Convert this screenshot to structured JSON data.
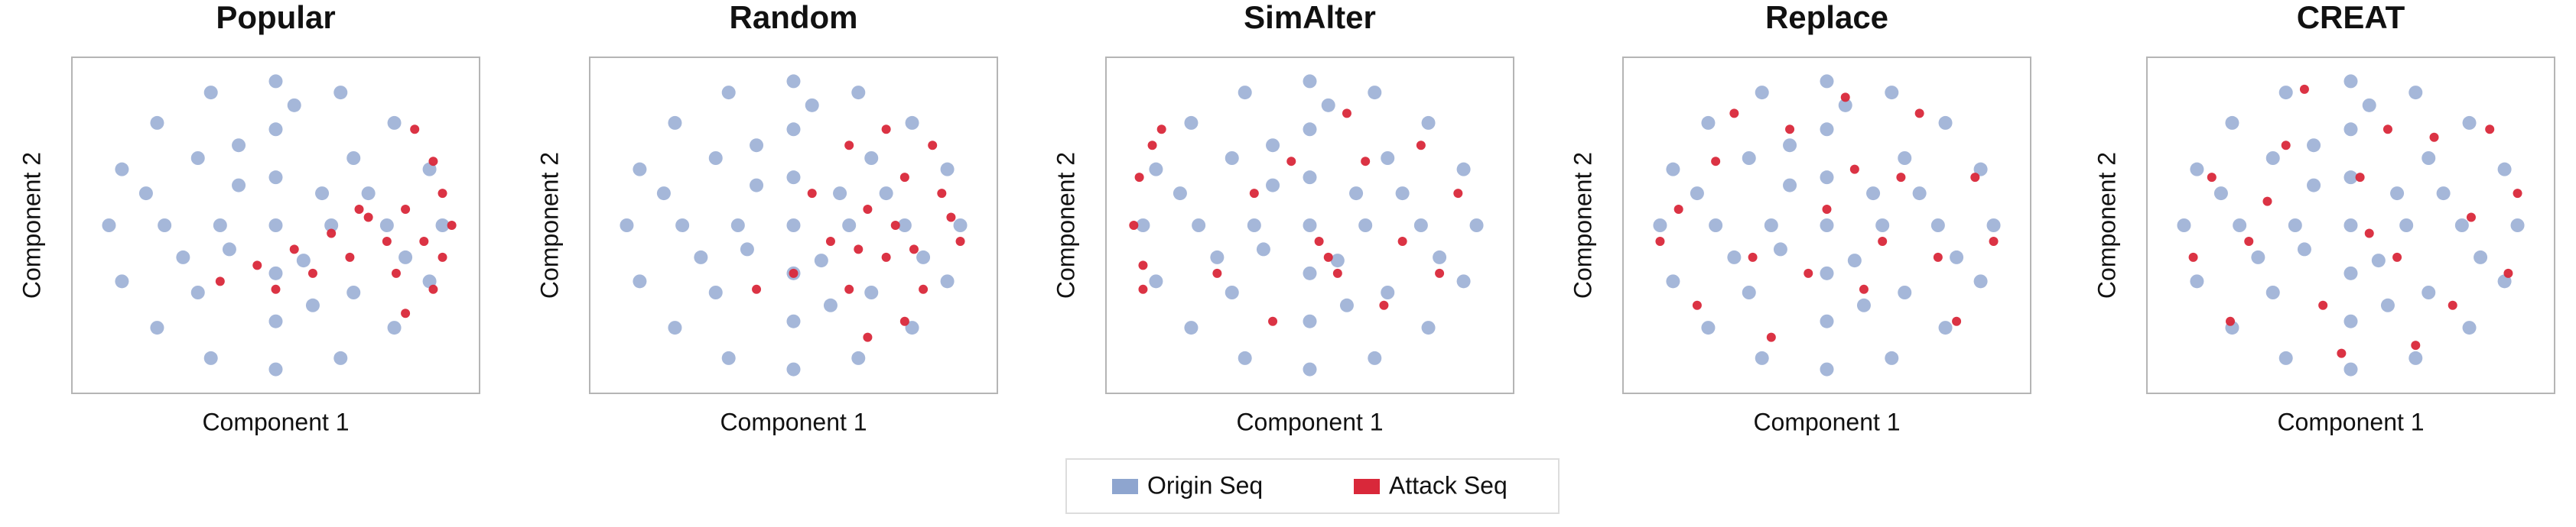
{
  "chart_data": [
    {
      "type": "scatter",
      "title": "Popular",
      "xlabel": "Component 1",
      "ylabel": "Component 2",
      "xlim": [
        -1.1,
        1.1
      ],
      "ylim": [
        -1.05,
        1.05
      ],
      "series": [
        {
          "x": [
            0,
            0.3,
            -0.3,
            0,
            0,
            0.6,
            -0.6,
            0,
            0,
            0.42,
            -0.42,
            0.42,
            -0.42,
            0.9,
            -0.9,
            0,
            0,
            0.64,
            -0.64,
            0.64,
            -0.64,
            0.83,
            0.83,
            -0.83,
            -0.83,
            0.35,
            -0.35,
            0.35,
            -0.35,
            0.25,
            -0.2,
            0.15,
            -0.25,
            0.5,
            -0.5,
            0.2,
            -0.2,
            0.7,
            -0.7,
            0.1
          ],
          "y": [
            0,
            0,
            0,
            0.3,
            -0.3,
            0,
            0,
            0.6,
            -0.6,
            0.42,
            0.42,
            -0.42,
            -0.42,
            0,
            0,
            0.9,
            -0.9,
            0.64,
            0.64,
            -0.64,
            -0.64,
            0.35,
            -0.35,
            0.35,
            -0.35,
            0.83,
            0.83,
            -0.83,
            -0.83,
            0.2,
            0.25,
            -0.22,
            -0.15,
            0.2,
            -0.2,
            -0.5,
            0.5,
            -0.2,
            0.2,
            0.75
          ]
        },
        {
          "x": [
            -0.3,
            -0.1,
            0.1,
            0.3,
            0.5,
            0.7,
            0.2,
            0.4,
            0.6,
            0,
            0.85,
            0.9,
            0.95,
            0.9,
            0.85,
            0.75,
            0.7,
            0.45,
            0.65,
            0.8
          ],
          "y": [
            -0.35,
            -0.25,
            -0.15,
            -0.05,
            0.05,
            0.1,
            -0.3,
            -0.2,
            -0.1,
            -0.4,
            0.4,
            0.2,
            0,
            -0.2,
            -0.4,
            0.6,
            -0.55,
            0.1,
            -0.3,
            -0.1
          ]
        }
      ]
    },
    {
      "type": "scatter",
      "title": "Random",
      "xlabel": "Component 1",
      "ylabel": "Component 2",
      "xlim": [
        -1.1,
        1.1
      ],
      "ylim": [
        -1.05,
        1.05
      ],
      "series": [
        {
          "x": [
            0,
            0.3,
            -0.3,
            0,
            0,
            0.6,
            -0.6,
            0,
            0,
            0.42,
            -0.42,
            0.42,
            -0.42,
            0.9,
            -0.9,
            0,
            0,
            0.64,
            -0.64,
            0.64,
            -0.64,
            0.83,
            0.83,
            -0.83,
            -0.83,
            0.35,
            -0.35,
            0.35,
            -0.35,
            0.25,
            -0.2,
            0.15,
            -0.25,
            0.5,
            -0.5,
            0.2,
            -0.2,
            0.7,
            -0.7,
            0.1
          ],
          "y": [
            0,
            0,
            0,
            0.3,
            -0.3,
            0,
            0,
            0.6,
            -0.6,
            0.42,
            0.42,
            -0.42,
            -0.42,
            0,
            0,
            0.9,
            -0.9,
            0.64,
            0.64,
            -0.64,
            -0.64,
            0.35,
            -0.35,
            0.35,
            -0.35,
            0.83,
            0.83,
            -0.83,
            -0.83,
            0.2,
            0.25,
            -0.22,
            -0.15,
            0.2,
            -0.2,
            -0.5,
            0.5,
            -0.2,
            0.2,
            0.75
          ]
        },
        {
          "x": [
            0.3,
            0.5,
            0.6,
            0.8,
            0.4,
            0.2,
            0.5,
            0.7,
            0.9,
            0.3,
            0,
            -0.2,
            0.6,
            0.4,
            0.75,
            0.1,
            0.85,
            0.55,
            0.35,
            0.65
          ],
          "y": [
            0.5,
            0.6,
            0.3,
            0.2,
            0.1,
            -0.1,
            -0.2,
            -0.4,
            -0.1,
            -0.4,
            -0.3,
            -0.4,
            -0.6,
            -0.7,
            0.5,
            0.2,
            0.05,
            0,
            -0.15,
            -0.15
          ]
        }
      ]
    },
    {
      "type": "scatter",
      "title": "SimAlter",
      "xlabel": "Component 1",
      "ylabel": "Component 2",
      "xlim": [
        -1.1,
        1.1
      ],
      "ylim": [
        -1.05,
        1.05
      ],
      "series": [
        {
          "x": [
            0,
            0.3,
            -0.3,
            0,
            0,
            0.6,
            -0.6,
            0,
            0,
            0.42,
            -0.42,
            0.42,
            -0.42,
            0.9,
            -0.9,
            0,
            0,
            0.64,
            -0.64,
            0.64,
            -0.64,
            0.83,
            0.83,
            -0.83,
            -0.83,
            0.35,
            -0.35,
            0.35,
            -0.35,
            0.25,
            -0.2,
            0.15,
            -0.25,
            0.5,
            -0.5,
            0.2,
            -0.2,
            0.7,
            -0.7,
            0.1
          ],
          "y": [
            0,
            0,
            0,
            0.3,
            -0.3,
            0,
            0,
            0.6,
            -0.6,
            0.42,
            0.42,
            -0.42,
            -0.42,
            0,
            0,
            0.9,
            -0.9,
            0.64,
            0.64,
            -0.64,
            -0.64,
            0.35,
            -0.35,
            0.35,
            -0.35,
            0.83,
            0.83,
            -0.83,
            -0.83,
            0.2,
            0.25,
            -0.22,
            -0.15,
            0.2,
            -0.2,
            -0.5,
            0.5,
            -0.2,
            0.2,
            0.75
          ]
        },
        {
          "x": [
            -0.92,
            -0.95,
            -0.9,
            -0.85,
            -0.8,
            -0.9,
            0.1,
            0.15,
            0.05,
            0.3,
            -0.3,
            0.5,
            0.6,
            -0.2,
            0.7,
            0.2,
            -0.5,
            0.4,
            0.8,
            -0.1
          ],
          "y": [
            0.3,
            0,
            -0.25,
            0.5,
            0.6,
            -0.4,
            -0.2,
            -0.3,
            -0.1,
            0.4,
            0.2,
            -0.1,
            0.5,
            -0.6,
            -0.3,
            0.7,
            -0.3,
            -0.5,
            0.2,
            0.4
          ]
        }
      ]
    },
    {
      "type": "scatter",
      "title": "Replace",
      "xlabel": "Component 1",
      "ylabel": "Component 2",
      "xlim": [
        -1.1,
        1.1
      ],
      "ylim": [
        -1.05,
        1.05
      ],
      "series": [
        {
          "x": [
            0,
            0.3,
            -0.3,
            0,
            0,
            0.6,
            -0.6,
            0,
            0,
            0.42,
            -0.42,
            0.42,
            -0.42,
            0.9,
            -0.9,
            0,
            0,
            0.64,
            -0.64,
            0.64,
            -0.64,
            0.83,
            0.83,
            -0.83,
            -0.83,
            0.35,
            -0.35,
            0.35,
            -0.35,
            0.25,
            -0.2,
            0.15,
            -0.25,
            0.5,
            -0.5,
            0.2,
            -0.2,
            0.7,
            -0.7,
            0.1
          ],
          "y": [
            0,
            0,
            0,
            0.3,
            -0.3,
            0,
            0,
            0.6,
            -0.6,
            0.42,
            0.42,
            -0.42,
            -0.42,
            0,
            0,
            0.9,
            -0.9,
            0.64,
            0.64,
            -0.64,
            -0.64,
            0.35,
            -0.35,
            0.35,
            -0.35,
            0.83,
            0.83,
            -0.83,
            -0.83,
            0.2,
            0.25,
            -0.22,
            -0.15,
            0.2,
            -0.2,
            -0.5,
            0.5,
            -0.2,
            0.2,
            0.75
          ]
        },
        {
          "x": [
            -0.8,
            -0.6,
            -0.4,
            -0.2,
            0,
            0.2,
            0.4,
            0.6,
            0.8,
            -0.7,
            -0.3,
            0.1,
            0.5,
            0.7,
            -0.5,
            0.3,
            -0.1,
            0.9,
            -0.9,
            0.15
          ],
          "y": [
            0.1,
            0.4,
            -0.2,
            0.6,
            0.1,
            -0.4,
            0.3,
            -0.2,
            0.3,
            -0.5,
            -0.7,
            0.8,
            0.7,
            -0.6,
            0.7,
            -0.1,
            -0.3,
            -0.1,
            -0.1,
            0.35
          ]
        }
      ]
    },
    {
      "type": "scatter",
      "title": "CREAT",
      "xlabel": "Component 1",
      "ylabel": "Component 2",
      "xlim": [
        -1.1,
        1.1
      ],
      "ylim": [
        -1.05,
        1.05
      ],
      "series": [
        {
          "x": [
            0,
            0.3,
            -0.3,
            0,
            0,
            0.6,
            -0.6,
            0,
            0,
            0.42,
            -0.42,
            0.42,
            -0.42,
            0.9,
            -0.9,
            0,
            0,
            0.64,
            -0.64,
            0.64,
            -0.64,
            0.83,
            0.83,
            -0.83,
            -0.83,
            0.35,
            -0.35,
            0.35,
            -0.35,
            0.25,
            -0.2,
            0.15,
            -0.25,
            0.5,
            -0.5,
            0.2,
            -0.2,
            0.7,
            -0.7,
            0.1
          ],
          "y": [
            0,
            0,
            0,
            0.3,
            -0.3,
            0,
            0,
            0.6,
            -0.6,
            0.42,
            0.42,
            -0.42,
            -0.42,
            0,
            0,
            0.9,
            -0.9,
            0.64,
            0.64,
            -0.64,
            -0.64,
            0.35,
            -0.35,
            0.35,
            -0.35,
            0.83,
            0.83,
            -0.83,
            -0.83,
            0.2,
            0.25,
            -0.22,
            -0.15,
            0.2,
            -0.2,
            -0.5,
            0.5,
            -0.2,
            0.2,
            0.75
          ]
        },
        {
          "x": [
            -0.75,
            -0.55,
            -0.35,
            -0.15,
            0.05,
            0.25,
            0.45,
            0.65,
            0.85,
            -0.65,
            -0.25,
            0.35,
            0.55,
            0.75,
            -0.85,
            0.1,
            -0.45,
            0.2,
            -0.05,
            0.9
          ],
          "y": [
            0.3,
            -0.1,
            0.5,
            -0.5,
            0.3,
            -0.2,
            0.55,
            0.05,
            -0.3,
            -0.6,
            0.85,
            -0.75,
            -0.5,
            0.6,
            -0.2,
            -0.05,
            0.15,
            0.6,
            -0.8,
            0.2
          ]
        }
      ]
    }
  ],
  "legend": {
    "series": [
      {
        "name": "Origin Seq",
        "color": "#8ea5cf"
      },
      {
        "name": "Attack Seq",
        "color": "#d9283a"
      }
    ]
  }
}
